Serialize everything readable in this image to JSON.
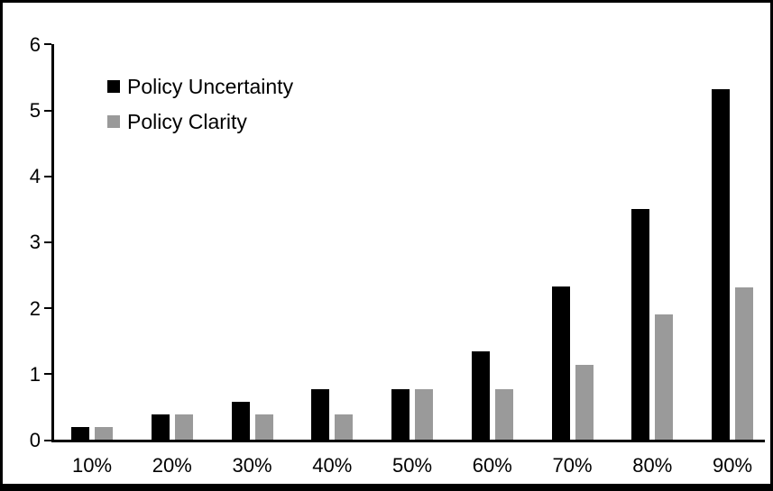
{
  "chart_data": {
    "type": "bar",
    "title": "",
    "xlabel": "",
    "ylabel": "",
    "categories": [
      "10%",
      "20%",
      "30%",
      "40%",
      "50%",
      "60%",
      "70%",
      "80%",
      "90%"
    ],
    "series": [
      {
        "name": "Policy Uncertainty",
        "color": "#000000",
        "values": [
          0.19,
          0.38,
          0.57,
          0.76,
          0.76,
          1.34,
          2.32,
          3.5,
          5.31
        ]
      },
      {
        "name": "Policy Clarity",
        "color": "#9a9a9a",
        "values": [
          0.19,
          0.38,
          0.38,
          0.38,
          0.76,
          0.76,
          1.14,
          1.9,
          2.31
        ]
      }
    ],
    "y_ticks": [
      "0",
      "1",
      "2",
      "3",
      "4",
      "5",
      "6"
    ],
    "ylim": [
      0,
      6
    ],
    "grid": false,
    "legend_position": "top-left-inside"
  },
  "colors": {
    "background": "#ffffff",
    "frame_border": "#000000",
    "axis": "#000000"
  }
}
